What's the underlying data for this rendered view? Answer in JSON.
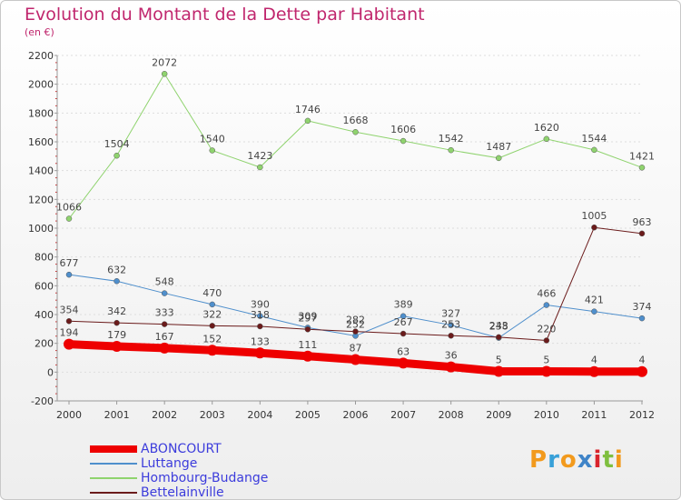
{
  "header": {
    "title": "Evolution du Montant de la Dette par Habitant",
    "subtitle": "(en €)"
  },
  "colors": {
    "title": "#c0266d",
    "legend_text": "#3c3cdc",
    "axis": "#999999",
    "grid": "#dddddd"
  },
  "logo": {
    "letters": [
      "P",
      "r",
      "o",
      "x",
      "i",
      "t",
      "i"
    ],
    "colors": [
      "#f29a1d",
      "#38a0d8",
      "#f29a1d",
      "#3f84c8",
      "#d9242c",
      "#7fbf3f",
      "#f29a1d"
    ]
  },
  "chart_data": {
    "type": "line",
    "title": "Evolution du Montant de la Dette par Habitant",
    "subtitle": "(en €)",
    "x": [
      "2000",
      "2001",
      "2002",
      "2003",
      "2004",
      "2005",
      "2006",
      "2007",
      "2008",
      "2009",
      "2010",
      "2011",
      "2012"
    ],
    "ylim": [
      -200,
      2200
    ],
    "yticks": [
      -200,
      0,
      200,
      400,
      600,
      800,
      1000,
      1200,
      1400,
      1600,
      1800,
      2000,
      2200
    ],
    "grid": true,
    "legend_position": "bottom-left",
    "series": [
      {
        "name": "ABONCOURT",
        "color": "#ee0000",
        "width": 9,
        "values": [
          194,
          179,
          167,
          152,
          133,
          111,
          87,
          63,
          36,
          5,
          5,
          4,
          4
        ]
      },
      {
        "name": "Luttange",
        "color": "#4f8fcc",
        "width": 1,
        "values": [
          677,
          632,
          548,
          470,
          390,
          309,
          252,
          389,
          327,
          238,
          466,
          421,
          374
        ]
      },
      {
        "name": "Hombourg-Budange",
        "color": "#8fd36e",
        "width": 1,
        "values": [
          1066,
          1504,
          2072,
          1540,
          1423,
          1746,
          1668,
          1606,
          1542,
          1487,
          1620,
          1544,
          1421
        ]
      },
      {
        "name": "Bettelainville",
        "color": "#6b1b1b",
        "width": 1,
        "values": [
          354,
          342,
          333,
          322,
          318,
          297,
          282,
          267,
          253,
          243,
          220,
          1005,
          963
        ]
      }
    ]
  }
}
